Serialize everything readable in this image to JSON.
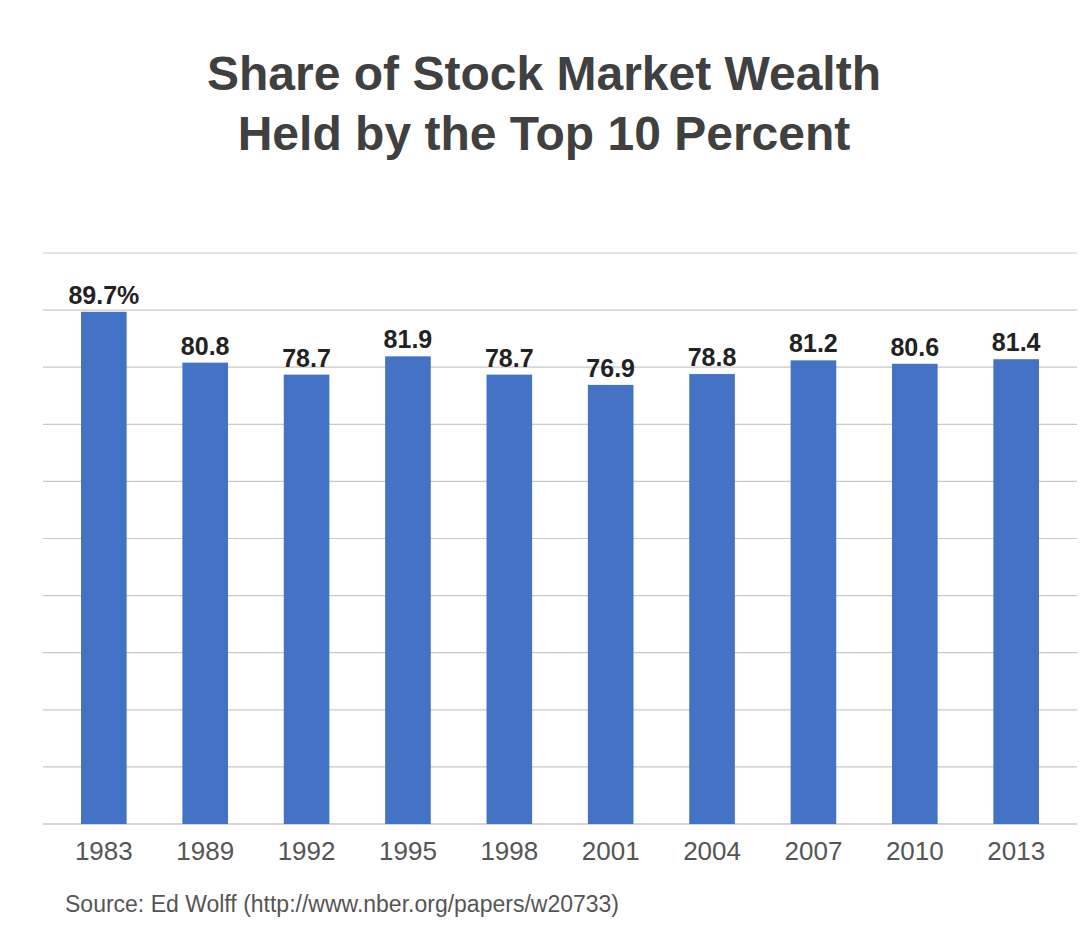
{
  "chart_data": {
    "type": "bar",
    "title": "Share of Stock Market Wealth\nHeld by the Top 10 Percent",
    "annotations": [
      "Source: Ed Wolff (http://www.nber.org/papers/w20733)"
    ],
    "categories": [
      "1983",
      "1989",
      "1992",
      "1995",
      "1998",
      "2001",
      "2004",
      "2007",
      "2010",
      "2013"
    ],
    "values": [
      89.7,
      80.8,
      78.7,
      81.9,
      78.7,
      76.9,
      78.8,
      81.2,
      80.6,
      81.4
    ],
    "value_labels": [
      "89.7%",
      "80.8",
      "78.7",
      "81.9",
      "78.7",
      "76.9",
      "78.8",
      "81.2",
      "80.6",
      "81.4"
    ],
    "color": "#4472C4",
    "ylim": [
      0,
      100
    ],
    "yticks": [
      0,
      10,
      20,
      30,
      40,
      50,
      60,
      70,
      80,
      90,
      100
    ],
    "grid": true,
    "data_labels": true,
    "tick_labels": "x"
  }
}
